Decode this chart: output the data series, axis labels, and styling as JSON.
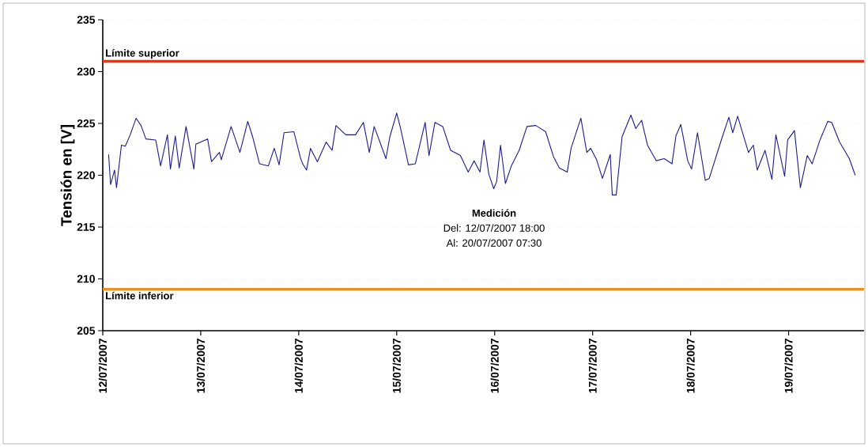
{
  "chart_data": {
    "type": "line",
    "ylabel": "Tensión en [V]",
    "annotations": [
      "Medición",
      "Del: 12/07/2007 18:00",
      "Al: 20/07/2007 07:30"
    ],
    "xlim": [
      "2007-07-12",
      "2007-07-19T18:29"
    ],
    "ylim": [
      205,
      235
    ],
    "yticks": [
      205,
      210,
      215,
      220,
      225,
      230,
      235
    ],
    "xticks": [
      {
        "value": "2007-07-12",
        "label": "12/07/2007"
      },
      {
        "value": "2007-07-13",
        "label": "13/07/2007"
      },
      {
        "value": "2007-07-14",
        "label": "14/07/2007"
      },
      {
        "value": "2007-07-15",
        "label": "15/07/2007"
      },
      {
        "value": "2007-07-16",
        "label": "16/07/2007"
      },
      {
        "value": "2007-07-17",
        "label": "17/07/2007"
      },
      {
        "value": "2007-07-18",
        "label": "18/07/2007"
      },
      {
        "value": "2007-07-19",
        "label": "19/07/2007"
      }
    ],
    "grid": "y",
    "marker": "none",
    "line_style": "solid",
    "ref_lines": [
      {
        "axis": "y",
        "value": 231,
        "label": "Límite superior",
        "color": "#e0361c"
      },
      {
        "axis": "y",
        "value": 209,
        "label": "Límite inferior",
        "color": "#f0901e"
      }
    ],
    "series": [
      {
        "color": "#1c1c8c",
        "x": [
          "2007-07-12T01:26",
          "2007-07-12T01:55",
          "2007-07-12T02:53",
          "2007-07-12T03:22",
          "2007-07-12T04:34",
          "2007-07-12T05:31",
          "2007-07-12T06:43",
          "2007-07-12T08:10",
          "2007-07-12T09:22",
          "2007-07-12T10:34",
          "2007-07-12T12:58",
          "2007-07-12T14:10",
          "2007-07-12T15:50",
          "2007-07-12T16:34",
          "2007-07-12T17:46",
          "2007-07-12T18:43",
          "2007-07-12T20:24",
          "2007-07-12T22:19",
          "2007-07-12T22:48",
          "2007-07-13T01:41",
          "2007-07-13T02:38",
          "2007-07-13T04:34",
          "2007-07-13T05:02",
          "2007-07-13T07:26",
          "2007-07-13T09:36",
          "2007-07-13T11:31",
          "2007-07-13T12:43",
          "2007-07-13T14:24",
          "2007-07-13T16:34",
          "2007-07-13T18:00",
          "2007-07-13T19:12",
          "2007-07-13T20:24",
          "2007-07-13T22:48",
          "2007-07-14T00:29",
          "2007-07-14T00:58",
          "2007-07-14T01:55",
          "2007-07-14T02:53",
          "2007-07-14T04:34",
          "2007-07-14T06:43",
          "2007-07-14T08:10",
          "2007-07-14T09:07",
          "2007-07-14T11:31",
          "2007-07-14T13:55",
          "2007-07-14T15:50",
          "2007-07-14T17:17",
          "2007-07-14T18:29",
          "2007-07-14T21:22",
          "2007-07-14T22:19",
          "2007-07-15T00:00",
          "2007-07-15T00:58",
          "2007-07-15T02:53",
          "2007-07-15T04:34",
          "2007-07-15T06:58",
          "2007-07-15T07:55",
          "2007-07-15T09:22",
          "2007-07-15T11:17",
          "2007-07-15T13:12",
          "2007-07-15T15:36",
          "2007-07-15T17:31",
          "2007-07-15T18:58",
          "2007-07-15T20:24",
          "2007-07-15T21:22",
          "2007-07-15T22:34",
          "2007-07-15T23:46",
          "2007-07-16T00:29",
          "2007-07-16T01:26",
          "2007-07-16T02:38",
          "2007-07-16T04:05",
          "2007-07-16T06:00",
          "2007-07-16T07:55",
          "2007-07-16T10:05",
          "2007-07-16T12:29",
          "2007-07-16T14:24",
          "2007-07-16T15:50",
          "2007-07-16T17:46",
          "2007-07-16T18:43",
          "2007-07-16T21:07",
          "2007-07-16T22:34",
          "2007-07-16T23:31",
          "2007-07-17T00:58",
          "2007-07-17T02:24",
          "2007-07-17T04:19",
          "2007-07-17T04:48",
          "2007-07-17T05:46",
          "2007-07-17T07:12",
          "2007-07-17T09:22",
          "2007-07-17T10:34",
          "2007-07-17T12:00",
          "2007-07-17T13:26",
          "2007-07-17T15:36",
          "2007-07-17T17:31",
          "2007-07-17T19:26",
          "2007-07-17T20:24",
          "2007-07-17T21:36",
          "2007-07-17T23:17",
          "2007-07-18T00:14",
          "2007-07-18T01:41",
          "2007-07-18T03:36",
          "2007-07-18T04:34",
          "2007-07-18T07:26",
          "2007-07-18T09:22",
          "2007-07-18T10:19",
          "2007-07-18T11:31",
          "2007-07-18T14:10",
          "2007-07-18T15:22",
          "2007-07-18T16:19",
          "2007-07-18T18:14",
          "2007-07-18T19:55",
          "2007-07-18T20:53",
          "2007-07-18T23:02",
          "2007-07-18T23:46",
          "2007-07-19T01:26",
          "2007-07-19T02:53",
          "2007-07-19T04:34",
          "2007-07-19T05:46",
          "2007-07-19T07:41",
          "2007-07-19T09:36",
          "2007-07-19T10:34",
          "2007-07-19T12:29",
          "2007-07-19T14:53",
          "2007-07-19T16:19"
        ],
        "values": [
          222.0,
          219.1,
          220.5,
          218.8,
          222.9,
          222.8,
          223.9,
          225.5,
          224.8,
          223.5,
          223.4,
          220.9,
          223.9,
          220.6,
          223.8,
          220.7,
          224.7,
          220.6,
          223.0,
          223.5,
          221.3,
          222.2,
          221.5,
          224.7,
          222.2,
          225.2,
          223.7,
          221.1,
          220.9,
          222.6,
          221.0,
          224.1,
          224.2,
          221.6,
          221.1,
          220.5,
          222.6,
          221.3,
          223.2,
          222.4,
          224.8,
          223.9,
          223.9,
          225.1,
          222.2,
          224.7,
          221.6,
          223.7,
          226.0,
          224.5,
          221.0,
          221.1,
          225.1,
          221.9,
          225.1,
          224.7,
          222.4,
          221.9,
          220.3,
          221.4,
          220.3,
          223.4,
          220.1,
          218.7,
          219.4,
          222.9,
          219.2,
          220.9,
          222.4,
          224.7,
          224.8,
          224.2,
          221.8,
          220.7,
          220.3,
          222.6,
          225.5,
          222.2,
          222.6,
          221.5,
          219.7,
          222.0,
          218.1,
          218.1,
          223.7,
          225.8,
          224.5,
          225.3,
          222.9,
          221.4,
          221.6,
          221.1,
          223.8,
          224.9,
          221.4,
          220.6,
          224.1,
          219.5,
          219.7,
          223.3,
          225.6,
          224.1,
          225.7,
          222.2,
          222.9,
          220.5,
          222.4,
          219.6,
          223.9,
          219.9,
          223.4,
          224.3,
          218.8,
          221.9,
          221.1,
          223.4,
          225.2,
          225.1,
          223.2,
          221.6,
          220.0
        ]
      }
    ]
  }
}
